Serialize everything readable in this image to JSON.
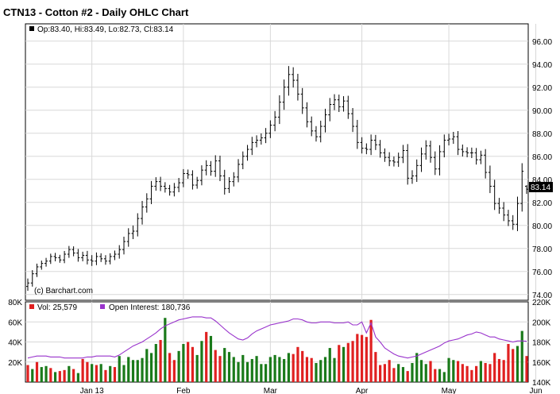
{
  "title": "CTN13 - Cotton #2 - Daily OHLC Chart",
  "colors": {
    "up_volume": "#1a7a1a",
    "down_volume": "#e02020",
    "open_interest": "#9933cc",
    "price_bar": "#000000",
    "last_price_box": "#000000"
  },
  "chart_data": [
    {
      "type": "ohlc",
      "legend": "Op:83.40, Hi:83.49, Lo:82.73, Cl:83.14",
      "ohlc_today": {
        "open": 83.4,
        "high": 83.49,
        "low": 82.73,
        "close": 83.14
      },
      "last_price_label": "83.14",
      "watermark": "(c) Barchart.com",
      "ylim": [
        73.5,
        97.5
      ],
      "y_ticks": [
        "96.00",
        "94.00",
        "92.00",
        "90.00",
        "88.00",
        "86.00",
        "84.00",
        "82.00",
        "80.00",
        "78.00",
        "76.00",
        "74.00"
      ],
      "x_ticks": [
        "Jan 13",
        "Feb",
        "Mar",
        "Apr",
        "May",
        "Jun"
      ],
      "closes": [
        75.0,
        75.8,
        76.4,
        76.7,
        76.9,
        77.3,
        77.2,
        77.0,
        77.5,
        77.9,
        77.6,
        77.2,
        77.4,
        77.0,
        76.9,
        77.3,
        77.1,
        76.9,
        77.3,
        77.5,
        77.9,
        78.6,
        79.3,
        79.5,
        80.6,
        81.6,
        82.3,
        83.4,
        83.8,
        83.4,
        83.2,
        82.9,
        83.3,
        83.7,
        84.5,
        84.4,
        83.5,
        83.9,
        84.8,
        85.2,
        84.7,
        85.6,
        84.3,
        83.2,
        83.8,
        84.2,
        85.3,
        86.0,
        86.6,
        87.2,
        87.4,
        87.6,
        88.0,
        88.7,
        89.4,
        90.7,
        92.0,
        93.1,
        92.6,
        91.4,
        90.2,
        89.0,
        88.2,
        87.7,
        88.6,
        89.6,
        90.5,
        90.9,
        90.3,
        90.8,
        89.7,
        88.6,
        87.2,
        86.7,
        86.6,
        87.4,
        87.0,
        86.3,
        85.9,
        85.6,
        85.5,
        85.9,
        86.5,
        84.1,
        84.3,
        85.2,
        86.2,
        86.9,
        85.9,
        84.9,
        86.4,
        87.4,
        87.5,
        87.7,
        86.6,
        86.4,
        86.3,
        86.3,
        85.7,
        86.1,
        84.6,
        83.4,
        81.9,
        81.5,
        80.9,
        80.4,
        80.1,
        81.9,
        84.7,
        83.14
      ],
      "ranges": [
        1.1,
        0.9,
        0.8,
        0.7,
        0.8,
        0.7,
        0.9,
        0.7,
        0.8,
        0.9,
        0.8,
        1.0,
        0.9,
        1.1,
        1.2,
        1.0,
        0.8,
        0.9,
        0.8,
        0.9,
        1.1,
        1.2,
        1.3,
        1.4,
        1.3,
        1.5,
        1.4,
        1.3,
        1.1,
        1.2,
        1.0,
        0.9,
        1.1,
        1.2,
        1.1,
        1.0,
        1.1,
        0.9,
        1.2,
        1.3,
        1.1,
        1.4,
        1.3,
        1.5,
        1.1,
        1.2,
        1.3,
        1.2,
        1.1,
        1.4,
        1.2,
        1.1,
        1.3,
        1.2,
        1.5,
        1.7,
        1.9,
        2.1,
        1.8,
        1.6,
        1.5,
        1.4,
        1.3,
        1.2,
        1.4,
        1.5,
        1.6,
        1.4,
        1.3,
        1.2,
        1.3,
        1.4,
        1.6,
        1.3,
        1.2,
        1.4,
        1.3,
        1.2,
        1.1,
        1.3,
        1.1,
        1.2,
        1.4,
        1.6,
        1.4,
        1.5,
        1.6,
        1.4,
        1.3,
        1.5,
        1.6,
        1.4,
        1.3,
        1.2,
        1.4,
        1.2,
        1.1,
        1.3,
        1.2,
        1.1,
        1.5,
        1.7,
        1.6,
        1.4,
        1.5,
        1.3,
        1.4,
        1.7,
        2.0,
        0.8
      ]
    },
    {
      "type": "bar+line",
      "volume_legend": "Vol: 25,579",
      "oi_legend": "Open Interest: 180,736",
      "volume_ylim": [
        0,
        80000
      ],
      "volume_ticks": [
        "80K",
        "60K",
        "40K",
        "20K"
      ],
      "oi_ylim": [
        140000,
        220000
      ],
      "oi_ticks": [
        "220K",
        "200K",
        "180K",
        "160K",
        "140K"
      ],
      "volume": [
        17000,
        13000,
        20000,
        15000,
        16000,
        14000,
        10000,
        11000,
        12000,
        16000,
        13000,
        9000,
        23000,
        20000,
        18000,
        17000,
        18000,
        12000,
        16000,
        15000,
        26000,
        17000,
        25000,
        22000,
        22000,
        24000,
        33000,
        29000,
        38000,
        42000,
        64000,
        29000,
        22000,
        31000,
        38000,
        40000,
        35000,
        27000,
        41000,
        50000,
        46000,
        32000,
        26000,
        34000,
        30000,
        25000,
        20000,
        27000,
        20000,
        23000,
        26000,
        18000,
        18000,
        25000,
        27000,
        25000,
        23000,
        29000,
        28000,
        35000,
        31000,
        25000,
        24000,
        19000,
        22000,
        25000,
        34000,
        24000,
        37000,
        35000,
        39000,
        41000,
        48000,
        47000,
        45000,
        62000,
        30000,
        17000,
        18000,
        22000,
        14000,
        18000,
        15000,
        11000,
        19000,
        29000,
        22000,
        18000,
        21000,
        13000,
        13000,
        10000,
        24000,
        22000,
        21000,
        18000,
        16000,
        12000,
        16000,
        21000,
        19000,
        18000,
        29000,
        23000,
        22000,
        38000,
        33000,
        36000,
        51000,
        26000
      ],
      "volume_direction": [
        "d",
        "u",
        "d",
        "u",
        "u",
        "d",
        "u",
        "d",
        "d",
        "u",
        "d",
        "u",
        "d",
        "d",
        "u",
        "d",
        "u",
        "d",
        "u",
        "d",
        "u",
        "u",
        "u",
        "u",
        "u",
        "u",
        "u",
        "u",
        "u",
        "d",
        "u",
        "d",
        "d",
        "u",
        "u",
        "d",
        "d",
        "u",
        "u",
        "d",
        "u",
        "d",
        "d",
        "u",
        "u",
        "u",
        "u",
        "u",
        "u",
        "u",
        "u",
        "u",
        "u",
        "u",
        "u",
        "u",
        "u",
        "u",
        "d",
        "d",
        "d",
        "d",
        "d",
        "u",
        "u",
        "u",
        "u",
        "u",
        "d",
        "u",
        "d",
        "d",
        "d",
        "d",
        "d",
        "d",
        "d",
        "d",
        "d",
        "d",
        "d",
        "u",
        "u",
        "d",
        "u",
        "u",
        "u",
        "u",
        "d",
        "d",
        "u",
        "u",
        "u",
        "u",
        "d",
        "d",
        "d",
        "d",
        "d",
        "u",
        "d",
        "d",
        "d",
        "d",
        "d",
        "d",
        "d",
        "u",
        "u",
        "d"
      ],
      "open_interest": [
        164000,
        165000,
        166000,
        166000,
        166000,
        165000,
        165000,
        165000,
        164000,
        164000,
        164000,
        164000,
        164000,
        165000,
        165000,
        166000,
        166000,
        166000,
        166000,
        165000,
        167000,
        170000,
        173000,
        176000,
        178000,
        180000,
        183000,
        186000,
        189000,
        193000,
        196000,
        198000,
        200000,
        202000,
        203000,
        204000,
        205000,
        205000,
        205000,
        204000,
        204000,
        201000,
        197000,
        193000,
        189000,
        186000,
        183000,
        182000,
        184000,
        188000,
        191000,
        193000,
        195000,
        197000,
        198000,
        199000,
        200000,
        201000,
        203000,
        203000,
        202000,
        200000,
        199000,
        199000,
        200000,
        200000,
        200000,
        199000,
        199000,
        199000,
        200000,
        197000,
        197000,
        200000,
        189000,
        199000,
        185000,
        180000,
        174000,
        171000,
        168000,
        166000,
        165000,
        164000,
        165000,
        166000,
        168000,
        170000,
        172000,
        174000,
        176000,
        179000,
        181000,
        182000,
        183000,
        185000,
        187000,
        188000,
        190000,
        189000,
        187000,
        185000,
        185000,
        183000,
        182000,
        181000,
        180000,
        181000,
        181000,
        180736
      ]
    }
  ]
}
